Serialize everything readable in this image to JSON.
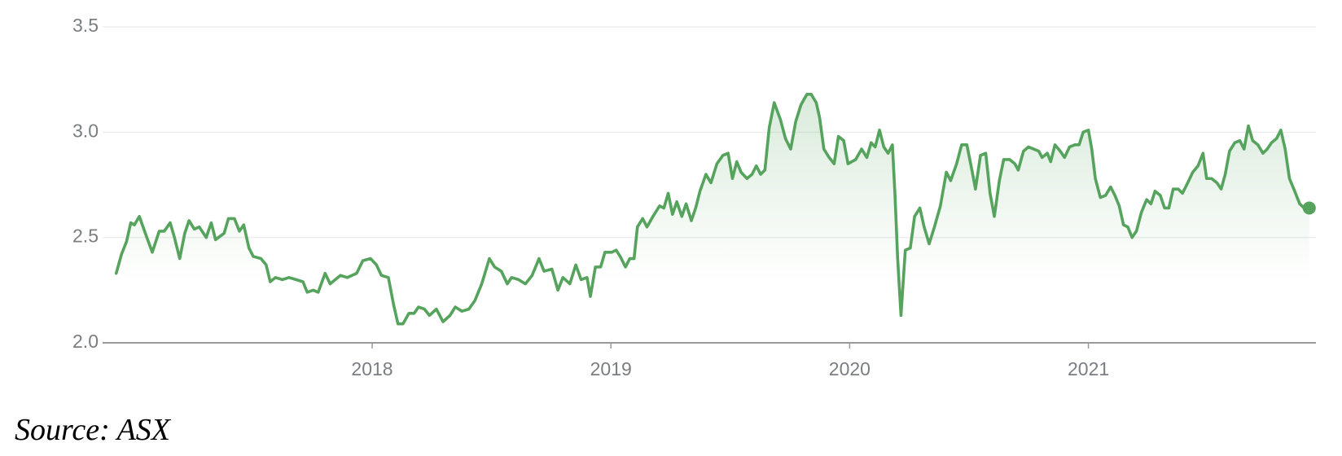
{
  "chart_data": {
    "type": "line",
    "source": "Source: ASX",
    "color": "#55a35c",
    "area": true,
    "grid": true,
    "xlim": [
      2016.871,
      2021.953
    ],
    "xticks": [
      2018,
      2019,
      2020,
      2021
    ],
    "ylim": [
      2.0,
      3.5
    ],
    "yticks": [
      {
        "value": 2.0,
        "label": "2.0"
      },
      2.5,
      {
        "value": 3.0,
        "label": "3.0"
      },
      3.5
    ],
    "x": [
      2016.928,
      2016.95,
      2016.971,
      2016.989,
      2017.004,
      2017.025,
      2017.05,
      2017.079,
      2017.108,
      2017.129,
      2017.154,
      2017.172,
      2017.194,
      2017.215,
      2017.233,
      2017.255,
      2017.276,
      2017.305,
      2017.326,
      2017.344,
      2017.38,
      2017.398,
      2017.423,
      2017.444,
      2017.462,
      2017.484,
      2017.502,
      2017.534,
      2017.556,
      2017.573,
      2017.595,
      2017.624,
      2017.652,
      2017.681,
      2017.71,
      2017.728,
      2017.753,
      2017.774,
      2017.803,
      2017.824,
      2017.867,
      2017.896,
      2017.935,
      2017.961,
      2017.993,
      2018.018,
      2018.039,
      2018.068,
      2018.09,
      2018.108,
      2018.129,
      2018.154,
      2018.176,
      2018.194,
      2018.219,
      2018.24,
      2018.269,
      2018.297,
      2018.326,
      2018.348,
      2018.376,
      2018.405,
      2018.43,
      2018.459,
      2018.491,
      2018.513,
      2018.541,
      2018.566,
      2018.584,
      2018.613,
      2018.642,
      2018.67,
      2018.699,
      2018.72,
      2018.753,
      2018.778,
      2018.799,
      2018.828,
      2018.853,
      2018.875,
      2018.9,
      2018.914,
      2018.935,
      2018.957,
      2018.975,
      2019.004,
      2019.022,
      2019.039,
      2019.061,
      2019.079,
      2019.097,
      2019.111,
      2019.133,
      2019.151,
      2019.176,
      2019.204,
      2019.222,
      2019.24,
      2019.258,
      2019.276,
      2019.297,
      2019.315,
      2019.337,
      2019.355,
      2019.373,
      2019.398,
      2019.419,
      2019.444,
      2019.469,
      2019.491,
      2019.509,
      2019.527,
      2019.545,
      2019.57,
      2019.591,
      2019.609,
      2019.627,
      2019.645,
      2019.663,
      2019.684,
      2019.71,
      2019.731,
      2019.753,
      2019.774,
      2019.796,
      2019.821,
      2019.839,
      2019.86,
      2019.874,
      2019.892,
      2019.914,
      2019.935,
      2019.953,
      2019.975,
      2019.993,
      2020.025,
      2020.05,
      2020.072,
      2020.09,
      2020.107,
      2020.125,
      2020.143,
      2020.161,
      2020.179,
      2020.19,
      2020.201,
      2020.215,
      2020.233,
      2020.254,
      2020.272,
      2020.294,
      2020.312,
      2020.333,
      2020.355,
      2020.38,
      2020.405,
      2020.423,
      2020.448,
      2020.469,
      2020.491,
      2020.512,
      2020.527,
      2020.548,
      2020.57,
      2020.588,
      2020.606,
      2020.627,
      2020.645,
      2020.67,
      2020.692,
      2020.706,
      2020.728,
      2020.749,
      2020.771,
      2020.792,
      2020.806,
      2020.828,
      2020.842,
      2020.86,
      2020.882,
      2020.9,
      2020.921,
      2020.943,
      2020.961,
      2020.978,
      2021.0,
      2021.014,
      2021.029,
      2021.05,
      2021.072,
      2021.093,
      2021.111,
      2021.129,
      2021.147,
      2021.165,
      2021.183,
      2021.201,
      2021.222,
      2021.244,
      2021.262,
      2021.279,
      2021.301,
      2021.319,
      2021.337,
      2021.355,
      2021.376,
      2021.394,
      2021.416,
      2021.437,
      2021.459,
      2021.48,
      2021.495,
      2021.516,
      2021.538,
      2021.556,
      2021.573,
      2021.591,
      2021.613,
      2021.634,
      2021.652,
      2021.67,
      2021.688,
      2021.71,
      2021.731,
      2021.749,
      2021.767,
      2021.788,
      2021.806,
      2021.824,
      2021.842,
      2021.864,
      2021.885,
      2021.903,
      2021.925
    ],
    "values": [
      2.33,
      2.42,
      2.48,
      2.57,
      2.56,
      2.6,
      2.52,
      2.43,
      2.53,
      2.53,
      2.57,
      2.5,
      2.4,
      2.52,
      2.58,
      2.54,
      2.55,
      2.5,
      2.57,
      2.49,
      2.52,
      2.59,
      2.59,
      2.53,
      2.56,
      2.45,
      2.41,
      2.4,
      2.37,
      2.29,
      2.31,
      2.3,
      2.31,
      2.3,
      2.29,
      2.24,
      2.25,
      2.24,
      2.33,
      2.28,
      2.32,
      2.31,
      2.33,
      2.39,
      2.4,
      2.37,
      2.32,
      2.31,
      2.18,
      2.09,
      2.09,
      2.14,
      2.14,
      2.17,
      2.16,
      2.13,
      2.16,
      2.1,
      2.13,
      2.17,
      2.15,
      2.16,
      2.2,
      2.28,
      2.4,
      2.36,
      2.34,
      2.28,
      2.31,
      2.3,
      2.28,
      2.32,
      2.4,
      2.34,
      2.35,
      2.25,
      2.31,
      2.28,
      2.37,
      2.3,
      2.31,
      2.22,
      2.36,
      2.36,
      2.43,
      2.43,
      2.44,
      2.41,
      2.36,
      2.4,
      2.4,
      2.55,
      2.59,
      2.55,
      2.6,
      2.65,
      2.64,
      2.71,
      2.61,
      2.67,
      2.6,
      2.66,
      2.58,
      2.64,
      2.72,
      2.8,
      2.76,
      2.85,
      2.89,
      2.9,
      2.78,
      2.86,
      2.81,
      2.78,
      2.8,
      2.84,
      2.8,
      2.82,
      3.02,
      3.14,
      3.06,
      2.97,
      2.92,
      3.05,
      3.13,
      3.18,
      3.18,
      3.14,
      3.07,
      2.92,
      2.88,
      2.85,
      2.98,
      2.96,
      2.85,
      2.87,
      2.92,
      2.88,
      2.95,
      2.93,
      3.01,
      2.93,
      2.9,
      2.94,
      2.7,
      2.4,
      2.13,
      2.44,
      2.45,
      2.6,
      2.64,
      2.55,
      2.47,
      2.55,
      2.65,
      2.81,
      2.77,
      2.85,
      2.94,
      2.94,
      2.82,
      2.73,
      2.89,
      2.9,
      2.71,
      2.6,
      2.77,
      2.87,
      2.87,
      2.85,
      2.82,
      2.91,
      2.93,
      2.92,
      2.91,
      2.88,
      2.9,
      2.86,
      2.94,
      2.91,
      2.88,
      2.93,
      2.94,
      2.94,
      3.0,
      3.01,
      2.92,
      2.78,
      2.69,
      2.7,
      2.74,
      2.7,
      2.65,
      2.56,
      2.55,
      2.5,
      2.53,
      2.62,
      2.68,
      2.66,
      2.72,
      2.7,
      2.64,
      2.64,
      2.73,
      2.73,
      2.71,
      2.76,
      2.81,
      2.84,
      2.9,
      2.78,
      2.78,
      2.76,
      2.73,
      2.8,
      2.91,
      2.95,
      2.96,
      2.92,
      3.03,
      2.96,
      2.94,
      2.9,
      2.92,
      2.95,
      2.97,
      3.01,
      2.92,
      2.78,
      2.72,
      2.66,
      2.64,
      2.64
    ]
  }
}
